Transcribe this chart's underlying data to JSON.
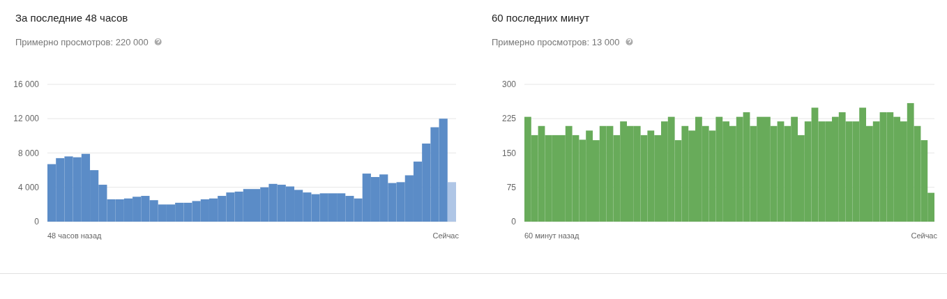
{
  "chart_data": [
    {
      "type": "bar",
      "title": "За последние 48 часов",
      "subtitle": "Примерно просмотров: 220 000",
      "categories": [
        null,
        null,
        null,
        null,
        null,
        null,
        null,
        null,
        null,
        null,
        null,
        null,
        null,
        null,
        null,
        null,
        null,
        null,
        null,
        null,
        null,
        null,
        null,
        null,
        null,
        null,
        null,
        null,
        null,
        null,
        null,
        null,
        null,
        null,
        null,
        null,
        null,
        null,
        null,
        null,
        null,
        null,
        null,
        null,
        null,
        null,
        null,
        null
      ],
      "annotations": [
        "48 часов назад",
        "Сейчас"
      ],
      "values": [
        6700,
        7400,
        7600,
        7500,
        7900,
        6000,
        4300,
        2600,
        2600,
        2700,
        2900,
        3000,
        2500,
        2000,
        2000,
        2200,
        2200,
        2400,
        2600,
        2700,
        3000,
        3400,
        3500,
        3800,
        3800,
        4000,
        4400,
        4300,
        4100,
        3700,
        3400,
        3200,
        3300,
        3300,
        3300,
        3000,
        2700,
        5600,
        5200,
        5500,
        4500,
        4600,
        5400,
        7000,
        9100,
        11000,
        12000,
        4600
      ],
      "colors": [
        "#5b8cc7",
        "#5b8cc7",
        "#5b8cc7",
        "#5b8cc7",
        "#5b8cc7",
        "#5b8cc7",
        "#5b8cc7",
        "#5b8cc7",
        "#5b8cc7",
        "#5b8cc7",
        "#5b8cc7",
        "#5b8cc7",
        "#5b8cc7",
        "#5b8cc7",
        "#5b8cc7",
        "#5b8cc7",
        "#5b8cc7",
        "#5b8cc7",
        "#5b8cc7",
        "#5b8cc7",
        "#5b8cc7",
        "#5b8cc7",
        "#5b8cc7",
        "#5b8cc7",
        "#5b8cc7",
        "#5b8cc7",
        "#5b8cc7",
        "#5b8cc7",
        "#5b8cc7",
        "#5b8cc7",
        "#5b8cc7",
        "#5b8cc7",
        "#5b8cc7",
        "#5b8cc7",
        "#5b8cc7",
        "#5b8cc7",
        "#5b8cc7",
        "#5b8cc7",
        "#5b8cc7",
        "#5b8cc7",
        "#5b8cc7",
        "#5b8cc7",
        "#5b8cc7",
        "#5b8cc7",
        "#5b8cc7",
        "#5b8cc7",
        "#5b8cc7",
        "#afc6e6"
      ],
      "ylim": [
        0,
        16000
      ],
      "yticks": [
        0,
        {
          "value": 4000,
          "label": "4 000"
        },
        {
          "value": 8000,
          "label": "8 000"
        },
        {
          "value": 12000,
          "label": "12 000"
        },
        {
          "value": 16000,
          "label": "16 000"
        }
      ],
      "grid": "y"
    },
    {
      "type": "bar",
      "title": "60 последних минут",
      "subtitle": "Примерно просмотров: 13 000",
      "categories": [
        null,
        null,
        null,
        null,
        null,
        null,
        null,
        null,
        null,
        null,
        null,
        null,
        null,
        null,
        null,
        null,
        null,
        null,
        null,
        null,
        null,
        null,
        null,
        null,
        null,
        null,
        null,
        null,
        null,
        null,
        null,
        null,
        null,
        null,
        null,
        null,
        null,
        null,
        null,
        null,
        null,
        null,
        null,
        null,
        null,
        null,
        null,
        null,
        null,
        null,
        null,
        null,
        null,
        null,
        null,
        null,
        null,
        null,
        null,
        null
      ],
      "annotations": [
        "60 минут назад",
        "Сейчас"
      ],
      "values": [
        229,
        189,
        209,
        189,
        189,
        189,
        209,
        189,
        179,
        199,
        178,
        209,
        209,
        189,
        219,
        209,
        209,
        189,
        199,
        189,
        219,
        229,
        178,
        209,
        199,
        229,
        209,
        199,
        229,
        219,
        209,
        229,
        239,
        209,
        229,
        229,
        209,
        219,
        209,
        229,
        189,
        219,
        249,
        219,
        219,
        229,
        239,
        219,
        219,
        249,
        209,
        219,
        239,
        239,
        229,
        219,
        259,
        209,
        178,
        63
      ],
      "color": "#68ab5a",
      "ylim": [
        0,
        300
      ],
      "yticks": [
        0,
        75,
        150,
        225,
        300
      ],
      "grid": "y"
    }
  ]
}
